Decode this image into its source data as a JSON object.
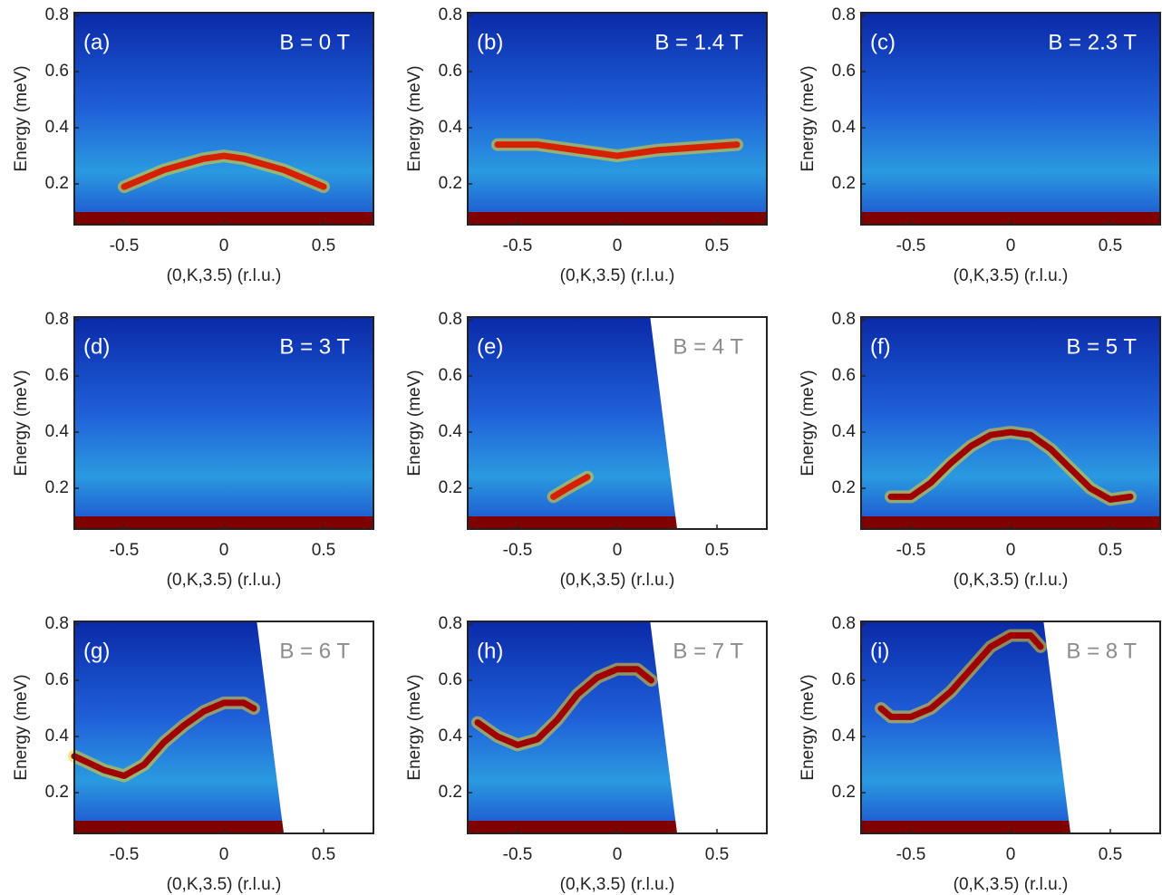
{
  "chart_data": [
    {
      "type": "line",
      "panel_label": "(a)",
      "annotation": "B = 0 T",
      "annotation_color": "#ffffff",
      "xlabel": "(0,K,3.5) (r.l.u.)",
      "ylabel": "Energy (meV)",
      "xlim": [
        -0.75,
        0.75
      ],
      "ylim": [
        0.055,
        0.81
      ],
      "xticks": [
        -0.5,
        0,
        0.5
      ],
      "yticks": [
        0.2,
        0.4,
        0.6,
        0.8
      ],
      "color": "#d62000",
      "x": [
        -0.5,
        -0.3,
        -0.1,
        0,
        0.1,
        0.3,
        0.5
      ],
      "values": [
        0.19,
        0.25,
        0.29,
        0.3,
        0.29,
        0.25,
        0.19
      ]
    },
    {
      "type": "line",
      "panel_label": "(b)",
      "annotation": "B = 1.4 T",
      "annotation_color": "#ffffff",
      "xlabel": "(0,K,3.5) (r.l.u.)",
      "ylabel": "Energy (meV)",
      "xlim": [
        -0.75,
        0.75
      ],
      "ylim": [
        0.055,
        0.81
      ],
      "xticks": [
        -0.5,
        0,
        0.5
      ],
      "yticks": [
        0.2,
        0.4,
        0.6,
        0.8
      ],
      "color": "#d62000",
      "x": [
        -0.6,
        -0.4,
        -0.2,
        0,
        0.2,
        0.4,
        0.6
      ],
      "values": [
        0.34,
        0.34,
        0.32,
        0.3,
        0.32,
        0.33,
        0.34
      ]
    },
    {
      "type": "line",
      "panel_label": "(c)",
      "annotation": "B = 2.3 T",
      "annotation_color": "#ffffff",
      "xlabel": "(0,K,3.5) (r.l.u.)",
      "ylabel": "Energy (meV)",
      "xlim": [
        -0.75,
        0.75
      ],
      "ylim": [
        0.055,
        0.81
      ],
      "xticks": [
        -0.5,
        0,
        0.5
      ],
      "yticks": [
        0.2,
        0.4,
        0.6,
        0.8
      ],
      "color": "#d62000",
      "x": [],
      "values": []
    },
    {
      "type": "line",
      "panel_label": "(d)",
      "annotation": "B = 3 T",
      "annotation_color": "#ffffff",
      "xlabel": "(0,K,3.5) (r.l.u.)",
      "ylabel": "Energy (meV)",
      "xlim": [
        -0.75,
        0.75
      ],
      "ylim": [
        0.055,
        0.81
      ],
      "xticks": [
        -0.5,
        0,
        0.5
      ],
      "yticks": [
        0.2,
        0.4,
        0.6,
        0.8
      ],
      "color": "#d62000",
      "x": [],
      "values": []
    },
    {
      "type": "line",
      "panel_label": "(e)",
      "annotation": "B = 4 T",
      "annotation_color": "#8c8c8c",
      "xlabel": "(0,K,3.5) (r.l.u.)",
      "ylabel": "Energy (meV)",
      "xlim": [
        -0.75,
        0.75
      ],
      "ylim": [
        0.055,
        0.81
      ],
      "xticks": [
        -0.5,
        0,
        0.5
      ],
      "yticks": [
        0.2,
        0.4,
        0.6,
        0.8
      ],
      "color": "#d62000",
      "x": [
        -0.32,
        -0.25,
        -0.15
      ],
      "values": [
        0.17,
        0.2,
        0.24
      ]
    },
    {
      "type": "line",
      "panel_label": "(f)",
      "annotation": "B = 5 T",
      "annotation_color": "#ffffff",
      "xlabel": "(0,K,3.5) (r.l.u.)",
      "ylabel": "Energy (meV)",
      "xlim": [
        -0.75,
        0.75
      ],
      "ylim": [
        0.055,
        0.81
      ],
      "xticks": [
        -0.5,
        0,
        0.5
      ],
      "yticks": [
        0.2,
        0.4,
        0.6,
        0.8
      ],
      "color": "#a00000",
      "x": [
        -0.6,
        -0.5,
        -0.4,
        -0.3,
        -0.2,
        -0.1,
        0,
        0.1,
        0.2,
        0.3,
        0.4,
        0.5,
        0.6
      ],
      "values": [
        0.17,
        0.17,
        0.22,
        0.29,
        0.35,
        0.39,
        0.4,
        0.39,
        0.34,
        0.27,
        0.2,
        0.16,
        0.17
      ]
    },
    {
      "type": "line",
      "panel_label": "(g)",
      "annotation": "B = 6 T",
      "annotation_color": "#8c8c8c",
      "xlabel": "(0,K,3.5) (r.l.u.)",
      "ylabel": "Energy (meV)",
      "xlim": [
        -0.75,
        0.75
      ],
      "ylim": [
        0.055,
        0.81
      ],
      "xticks": [
        -0.5,
        0,
        0.5
      ],
      "yticks": [
        0.2,
        0.4,
        0.6,
        0.8
      ],
      "color": "#a00000",
      "x": [
        -0.75,
        -0.6,
        -0.5,
        -0.4,
        -0.3,
        -0.2,
        -0.1,
        0,
        0.1,
        0.15
      ],
      "values": [
        0.33,
        0.28,
        0.26,
        0.3,
        0.38,
        0.44,
        0.49,
        0.52,
        0.52,
        0.5
      ]
    },
    {
      "type": "line",
      "panel_label": "(h)",
      "annotation": "B = 7 T",
      "annotation_color": "#8c8c8c",
      "xlabel": "(0,K,3.5) (r.l.u.)",
      "ylabel": "Energy (meV)",
      "xlim": [
        -0.75,
        0.75
      ],
      "ylim": [
        0.055,
        0.81
      ],
      "xticks": [
        -0.5,
        0,
        0.5
      ],
      "yticks": [
        0.2,
        0.4,
        0.6,
        0.8
      ],
      "color": "#a00000",
      "x": [
        -0.7,
        -0.6,
        -0.5,
        -0.4,
        -0.3,
        -0.2,
        -0.1,
        0,
        0.1,
        0.17
      ],
      "values": [
        0.45,
        0.4,
        0.37,
        0.39,
        0.46,
        0.55,
        0.61,
        0.64,
        0.64,
        0.6
      ]
    },
    {
      "type": "line",
      "panel_label": "(i)",
      "annotation": "B = 8 T",
      "annotation_color": "#8c8c8c",
      "xlabel": "(0,K,3.5) (r.l.u.)",
      "ylabel": "Energy (meV)",
      "xlim": [
        -0.75,
        0.75
      ],
      "ylim": [
        0.055,
        0.81
      ],
      "xticks": [
        -0.5,
        0,
        0.5
      ],
      "yticks": [
        0.2,
        0.4,
        0.6,
        0.8
      ],
      "color": "#a00000",
      "x": [
        -0.65,
        -0.6,
        -0.5,
        -0.4,
        -0.3,
        -0.2,
        -0.1,
        0,
        0.1,
        0.15
      ],
      "values": [
        0.5,
        0.47,
        0.47,
        0.5,
        0.56,
        0.64,
        0.72,
        0.76,
        0.76,
        0.72
      ]
    }
  ]
}
